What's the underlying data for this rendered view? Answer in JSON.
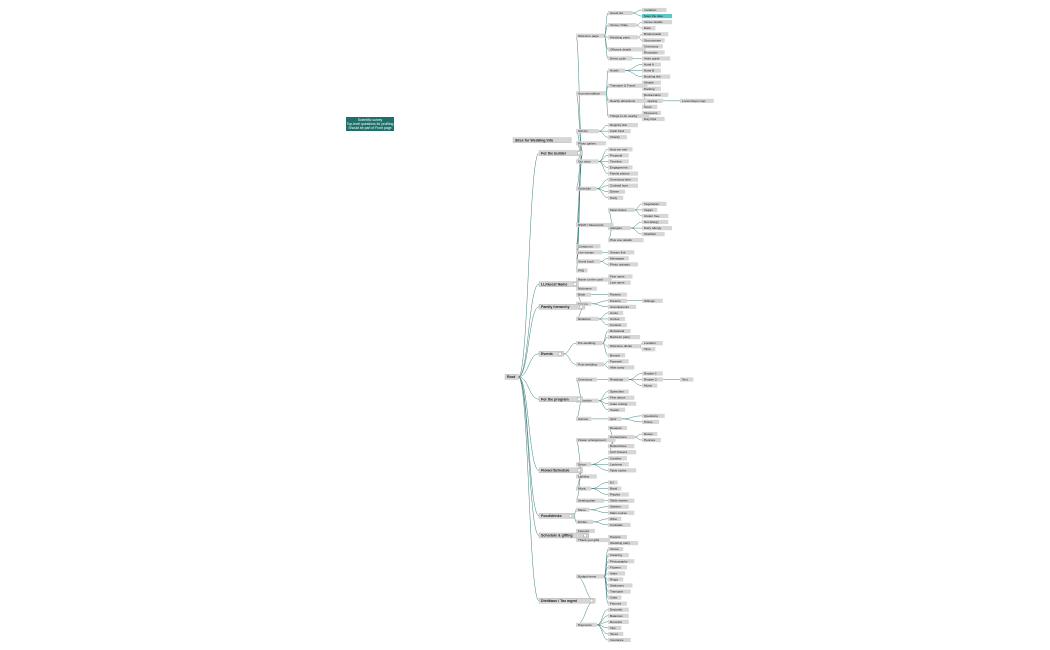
{
  "note": {
    "lines": [
      "Scientific survey",
      "Top-level questions for profiling",
      "Should be part of Front page"
    ]
  },
  "tree": {
    "label": "Root",
    "children": [
      {
        "label": "Sites for Wedding Info",
        "children": []
      },
      {
        "label": "For the builder",
        "children": [
          {
            "label": "Welcome page",
            "children": [
              {
                "label": "Guest list",
                "children": [
                  {
                    "label": "Invitation"
                  },
                  {
                    "label": "Save the date",
                    "color": "#5cc9c9"
                  }
                ]
              },
              {
                "label": "Venue / Date",
                "children": [
                  {
                    "label": "Venue details"
                  },
                  {
                    "label": "Date"
                  }
                ]
              },
              {
                "label": "Wedding party",
                "children": [
                  {
                    "label": "Bridesmaids"
                  },
                  {
                    "label": "Groomsmen"
                  }
                ]
              },
              {
                "label": "Officiant details",
                "children": [
                  {
                    "label": "Ceremony"
                  },
                  {
                    "label": "Reception"
                  }
                ]
              },
              {
                "label": "Dress code",
                "children": [
                  {
                    "label": "Attire guide"
                  }
                ]
              }
            ]
          },
          {
            "label": "Accommodation",
            "children": [
              {
                "label": "Hotels",
                "children": [
                  {
                    "label": "Hotel A"
                  },
                  {
                    "label": "Hotel B"
                  },
                  {
                    "label": "Booking link"
                  }
                ]
              },
              {
                "label": "Transport & Travel",
                "children": [
                  {
                    "label": "Shuttle"
                  },
                  {
                    "label": "Parking"
                  }
                ]
              },
              {
                "label": "Nearby attractions",
                "children": [
                  {
                    "label": "Restaurants"
                  },
                  {
                    "label": "Shopping",
                    "children": [
                      {
                        "label": "Local shops map"
                      }
                    ]
                  },
                  {
                    "label": "Tours"
                  }
                ]
              },
              {
                "label": "Things to do nearby",
                "children": [
                  {
                    "label": "Museums"
                  },
                  {
                    "label": "Day trips"
                  }
                ]
              }
            ]
          },
          {
            "label": "Gift list",
            "children": [
              {
                "label": "Registry link"
              },
              {
                "label": "Cash fund"
              },
              {
                "label": "Charity"
              }
            ]
          },
          {
            "label": "Photo gallery",
            "children": []
          },
          {
            "label": "Our story",
            "children": [
              {
                "label": "How we met"
              },
              {
                "label": "Proposal"
              },
              {
                "label": "Timeline"
              },
              {
                "label": "Engagement"
              },
              {
                "label": "Family photos"
              }
            ]
          },
          {
            "label": "Schedule",
            "children": [
              {
                "label": "Ceremony time"
              },
              {
                "label": "Cocktail hour"
              },
              {
                "label": "Dinner"
              },
              {
                "label": "Party"
              }
            ]
          },
          {
            "label": "RSVP / Meal prefs",
            "children": [
              {
                "label": "Meal choice",
                "children": [
                  {
                    "label": "Vegetarian"
                  },
                  {
                    "label": "Vegan"
                  },
                  {
                    "label": "Gluten free"
                  }
                ]
              },
              {
                "label": "Allergies",
                "children": [
                  {
                    "label": "Nut allergy"
                  },
                  {
                    "label": "Dairy allergy"
                  },
                  {
                    "label": "Shellfish"
                  }
                ]
              },
              {
                "label": "Plus one details",
                "children": []
              }
            ]
          },
          {
            "label": "Contact us",
            "children": []
          },
          {
            "label": "Live stream",
            "children": [
              {
                "label": "Stream link"
              }
            ]
          },
          {
            "label": "Guest book",
            "children": [
              {
                "label": "Messages"
              },
              {
                "label": "Photo uploads"
              }
            ]
          },
          {
            "label": "FAQ",
            "children": []
          }
        ]
      },
      {
        "label": "LL/Guest Name",
        "children": [
          {
            "label": "Name on the card",
            "children": [
              {
                "label": "First name"
              },
              {
                "label": "Last name"
              }
            ]
          },
          {
            "label": "Nickname",
            "children": []
          }
        ]
      },
      {
        "label": "Family hierarchy",
        "children": [
          {
            "label": "Bride",
            "children": [
              {
                "label": "Parents"
              }
            ]
          },
          {
            "label": "Groom",
            "children": [
              {
                "label": "Parents",
                "children": [
                  {
                    "label": "Siblings"
                  }
                ]
              },
              {
                "label": "Grandparents"
              }
            ]
          },
          {
            "label": "Relatives",
            "children": [
              {
                "label": "Aunts"
              },
              {
                "label": "Uncles"
              },
              {
                "label": "Cousins"
              }
            ]
          }
        ]
      },
      {
        "label": "Events",
        "children": [
          {
            "label": "Pre-wedding",
            "children": [
              {
                "label": "Rehearsal"
              },
              {
                "label": "Bachelor party"
              },
              {
                "label": "Welcome drinks",
                "children": [
                  {
                    "label": "Location"
                  },
                  {
                    "label": "Time"
                  }
                ]
              },
              {
                "label": "Brunch"
              }
            ]
          },
          {
            "label": "Post-wedding",
            "children": [
              {
                "label": "Farewell"
              },
              {
                "label": "After party"
              }
            ]
          }
        ]
      },
      {
        "label": "For the program",
        "children": [
          {
            "label": "Ceremony",
            "children": [
              {
                "label": "Readings",
                "children": [
                  {
                    "label": "Reader 1"
                  },
                  {
                    "label": "Reader 2",
                    "children": [
                      {
                        "label": "Text"
                      }
                    ]
                  },
                  {
                    "label": "Music"
                  }
                ]
              }
            ]
          },
          {
            "label": "Reception",
            "children": [
              {
                "label": "Speeches"
              },
              {
                "label": "First dance"
              },
              {
                "label": "Cake cutting"
              },
              {
                "label": "Toasts"
              }
            ]
          },
          {
            "label": "Games",
            "children": [
              {
                "label": "Quiz",
                "children": [
                  {
                    "label": "Questions"
                  },
                  {
                    "label": "Prizes"
                  }
                ]
              }
            ]
          }
        ]
      },
      {
        "label": "Flower/Schedule",
        "children": [
          {
            "label": "Flower arrangement",
            "children": [
              {
                "label": "Bouquet"
              },
              {
                "label": "Centerpiece",
                "children": [
                  {
                    "label": "Roses"
                  },
                  {
                    "label": "Peonies"
                  }
                ]
              },
              {
                "label": "Buttonholes"
              },
              {
                "label": "Arch flowers"
              }
            ]
          },
          {
            "label": "Décor",
            "children": [
              {
                "label": "Candles"
              },
              {
                "label": "Lanterns"
              },
              {
                "label": "Table cloths"
              }
            ]
          },
          {
            "label": "Lighting",
            "children": []
          },
          {
            "label": "Music",
            "children": [
              {
                "label": "DJ"
              },
              {
                "label": "Band"
              },
              {
                "label": "Playlist"
              }
            ]
          },
          {
            "label": "Seating plan",
            "children": [
              {
                "label": "Table names"
              }
            ]
          }
        ]
      },
      {
        "label": "Food/drinks",
        "children": [
          {
            "label": "Menu",
            "children": [
              {
                "label": "Starters"
              },
              {
                "label": "Main course"
              }
            ]
          },
          {
            "label": "Drinks",
            "children": [
              {
                "label": "Wine"
              },
              {
                "label": "Cocktails"
              }
            ]
          }
        ]
      },
      {
        "label": "Schedule & gifting",
        "children": [
          {
            "label": "Favours",
            "children": []
          },
          {
            "label": "Thank-you gifts",
            "children": [
              {
                "label": "Parents"
              },
              {
                "label": "Wedding party"
              }
            ]
          }
        ]
      },
      {
        "label": "Dietitians / Tax mgmt",
        "children": [
          {
            "label": "Budget items",
            "children": [
              {
                "label": "Venue"
              },
              {
                "label": "Catering"
              },
              {
                "label": "Photography"
              },
              {
                "label": "Flowers"
              },
              {
                "label": "Attire"
              },
              {
                "label": "Rings"
              },
              {
                "label": "Stationery"
              },
              {
                "label": "Transport"
              },
              {
                "label": "Cake"
              },
              {
                "label": "Favours"
              }
            ]
          },
          {
            "label": "Payments",
            "children": [
              {
                "label": "Deposits"
              },
              {
                "label": "Balances"
              },
              {
                "label": "Receipts"
              },
              {
                "label": "Tips"
              },
              {
                "label": "Taxes"
              },
              {
                "label": "Insurance"
              }
            ]
          }
        ]
      }
    ]
  }
}
